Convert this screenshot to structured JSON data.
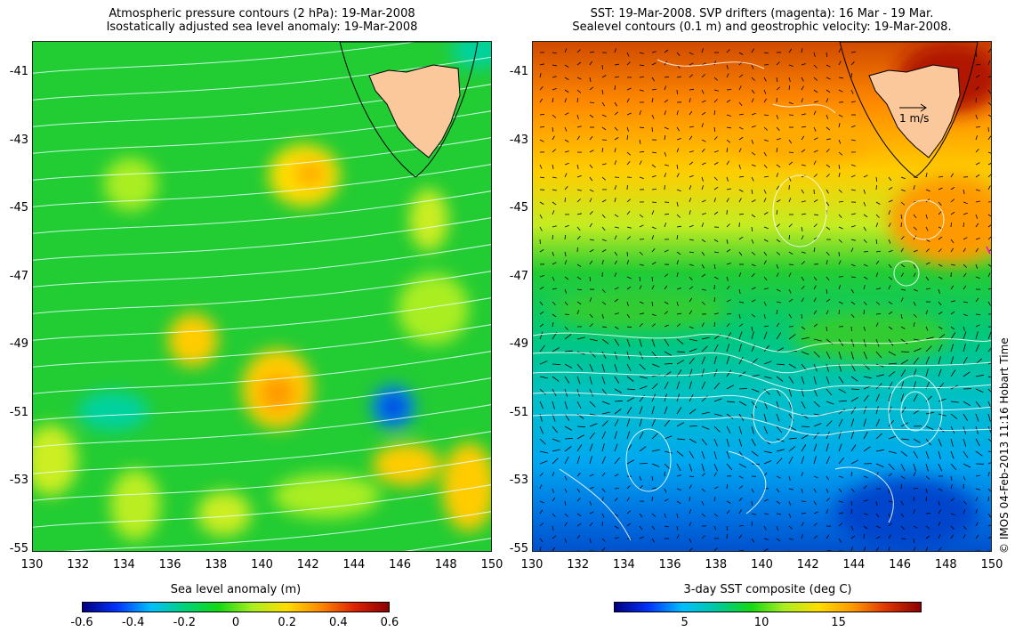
{
  "left_panel": {
    "title_line1": "Atmospheric pressure contours (2 hPa): 19-Mar-2008",
    "title_line2": "Isostatically adjusted sea level anomaly: 19-Mar-2008",
    "colorbar_label": "Sea level anomaly (m)",
    "colorbar_ticks": [
      "-0.6",
      "-0.4",
      "-0.2",
      "0",
      "0.2",
      "0.4",
      "0.6"
    ],
    "colorbar_colors": [
      "#00007f",
      "#0033ff",
      "#00bfff",
      "#00d27a",
      "#14d914",
      "#aaee22",
      "#ffdd00",
      "#ff8800",
      "#dd2200",
      "#8b0000"
    ]
  },
  "right_panel": {
    "title_line1": "SST: 19-Mar-2008. SVP drifters (magenta): 16 Mar - 19 Mar.",
    "title_line2": "Sealevel contours (0.1 m) and geostrophic velocity: 19-Mar-2008.",
    "colorbar_label": "3-day SST composite (deg C)",
    "colorbar_ticks": [
      "5",
      "10",
      "15"
    ],
    "colorbar_colors": [
      "#00007f",
      "#0033ff",
      "#00bfff",
      "#00c8a0",
      "#14d914",
      "#aaee22",
      "#ffdd00",
      "#ff9900",
      "#dd3300",
      "#8b0000"
    ],
    "velocity_scale_label": "1 m/s"
  },
  "axes": {
    "x_ticks": [
      "130",
      "132",
      "134",
      "136",
      "138",
      "140",
      "142",
      "144",
      "146",
      "148",
      "150"
    ],
    "y_ticks": [
      "-41",
      "-43",
      "-45",
      "-47",
      "-49",
      "-51",
      "-53",
      "-55"
    ]
  },
  "credit": "© IMOS 04-Feb-2013 11:16 Hobart Time",
  "colors": {
    "land": "#fac89a",
    "background_green": "#22cc33",
    "contour_white": "#ffffff"
  }
}
